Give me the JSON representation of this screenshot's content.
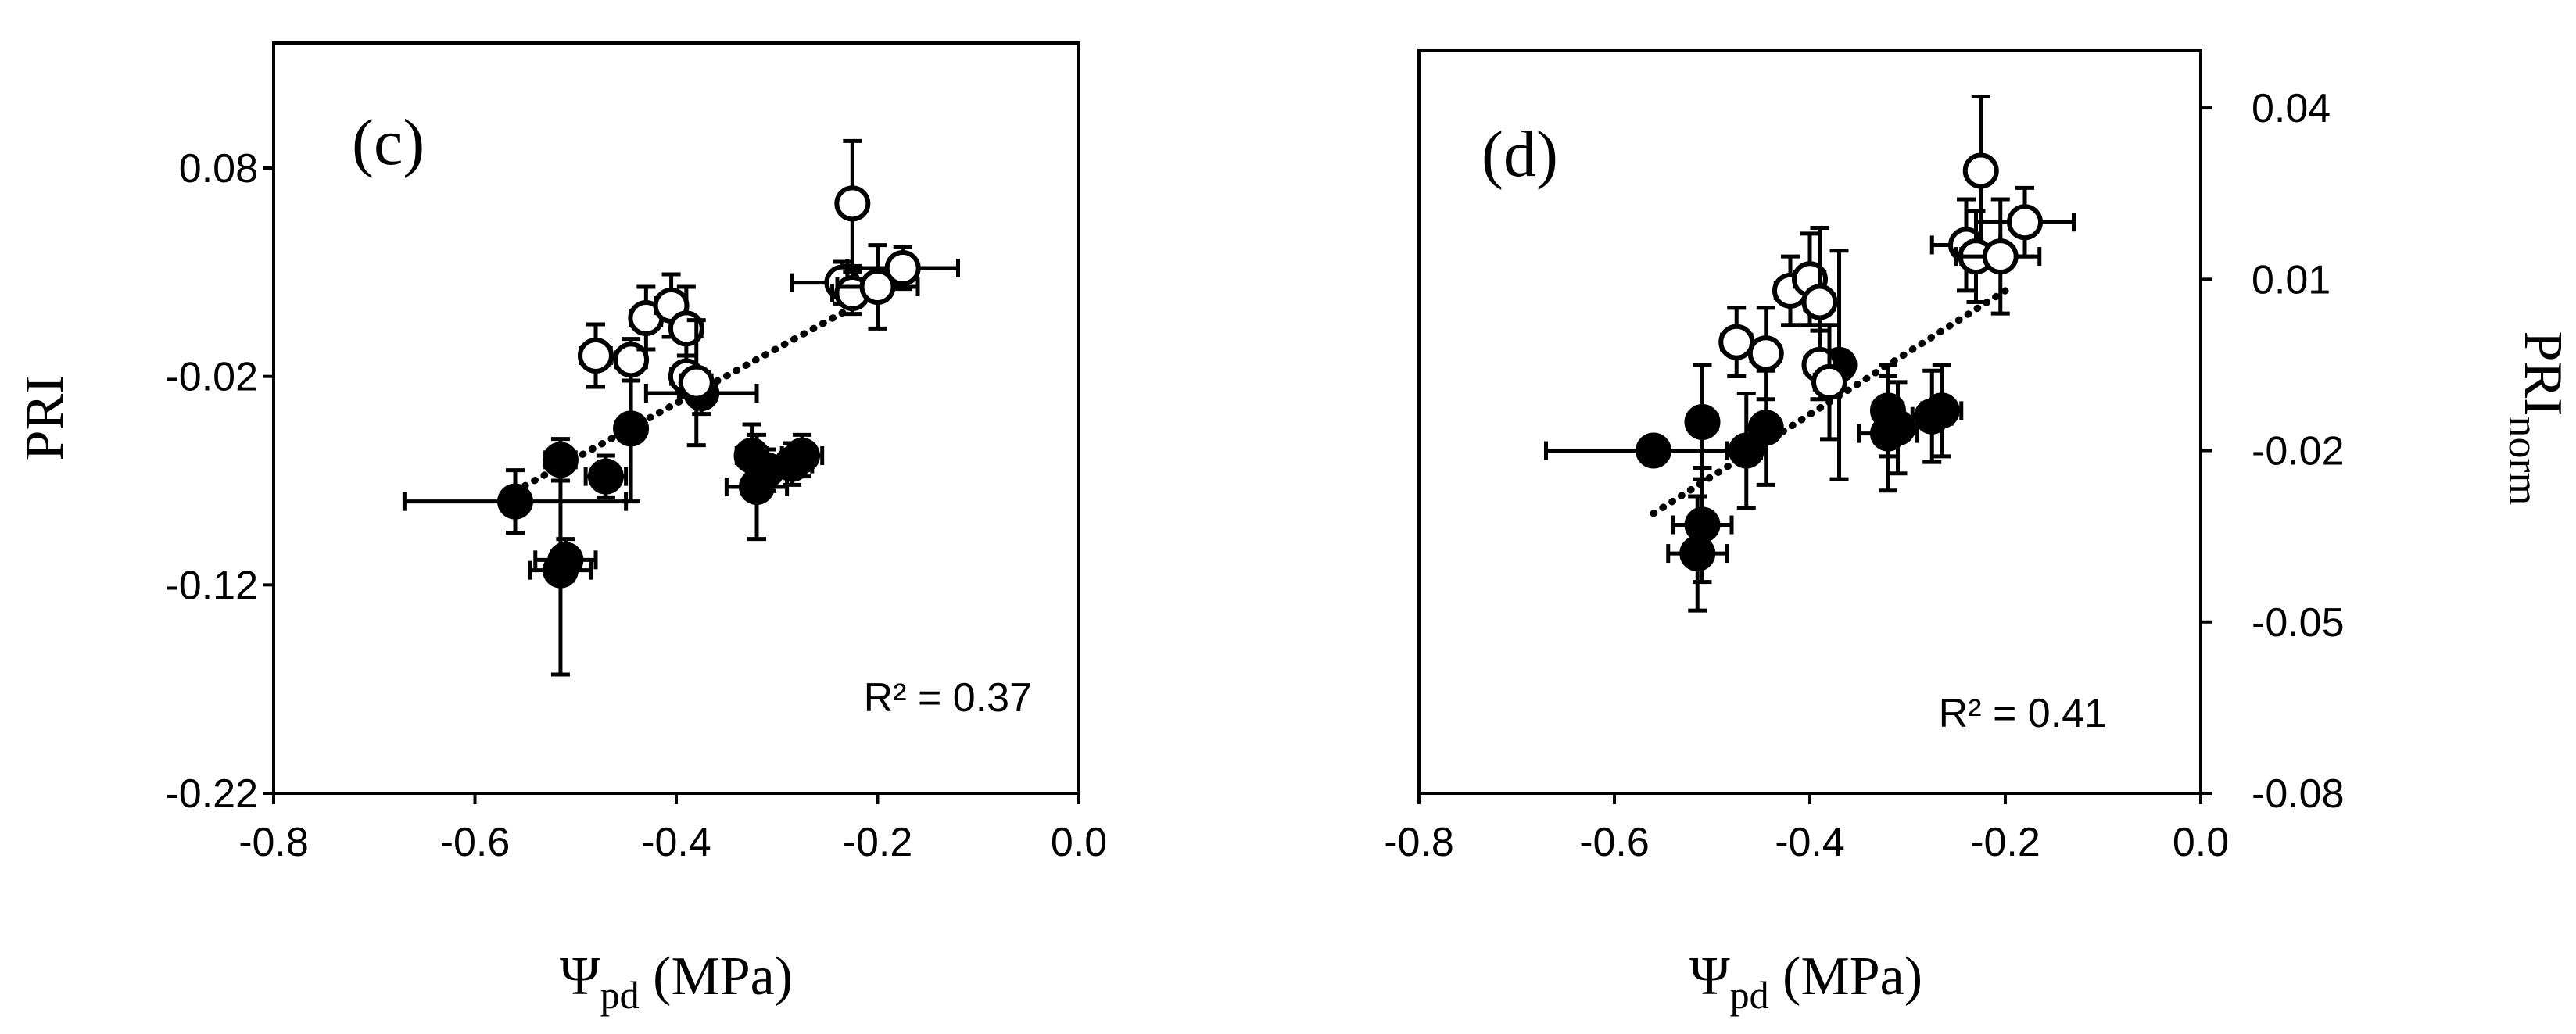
{
  "chart_data": [
    {
      "type": "scatter",
      "panel_label": "(c)",
      "xlabel_symbol": "Ψ",
      "xlabel_sub": "pd",
      "xlabel_unit": " (MPa)",
      "ylabel": "PRI",
      "ylabel_sub": "",
      "y_axis_side": "left",
      "xlim": [
        -0.8,
        0.0
      ],
      "ylim": [
        -0.22,
        0.14
      ],
      "x_ticks": [
        -0.8,
        -0.6,
        -0.4,
        -0.2,
        0.0
      ],
      "x_tick_labels": [
        "-0.8",
        "-0.6",
        "-0.4",
        "-0.2",
        "0.0"
      ],
      "y_ticks": [
        0.08,
        -0.02,
        -0.12,
        -0.22
      ],
      "y_tick_labels": [
        "0.08",
        "-0.02",
        "-0.12",
        "-0.22"
      ],
      "grid": false,
      "annotation": "R² = 0.37",
      "trendline": {
        "style": "dotted",
        "x": [
          -0.56,
          -0.18
        ],
        "y": [
          -0.075,
          0.025
        ]
      },
      "series": [
        {
          "marker": "filled-circle",
          "points": [
            {
              "x": -0.56,
              "y": -0.08,
              "xerr": 0.11,
              "yerr": 0.015
            },
            {
              "x": -0.515,
              "y": -0.06,
              "xerr": 0.015,
              "yerr": 0.01
            },
            {
              "x": -0.515,
              "y": -0.113,
              "xerr": 0.03,
              "yerr": 0.05
            },
            {
              "x": -0.51,
              "y": -0.108,
              "xerr": 0.03,
              "yerr": 0.01
            },
            {
              "x": -0.47,
              "y": -0.068,
              "xerr": 0.02,
              "yerr": 0.01
            },
            {
              "x": -0.445,
              "y": -0.045,
              "xerr": 0.005,
              "yerr": 0.035
            },
            {
              "x": -0.375,
              "y": -0.028,
              "xerr": 0.055,
              "yerr": 0.01
            },
            {
              "x": -0.325,
              "y": -0.058,
              "xerr": 0.015,
              "yerr": 0.015
            },
            {
              "x": -0.32,
              "y": -0.073,
              "xerr": 0.03,
              "yerr": 0.025
            },
            {
              "x": -0.31,
              "y": -0.065,
              "xerr": 0.02,
              "yerr": 0.01
            },
            {
              "x": -0.285,
              "y": -0.062,
              "xerr": 0.02,
              "yerr": 0.01
            },
            {
              "x": -0.275,
              "y": -0.058,
              "xerr": 0.02,
              "yerr": 0.01
            }
          ]
        },
        {
          "marker": "open-circle",
          "points": [
            {
              "x": -0.48,
              "y": -0.01,
              "xerr": 0.015,
              "yerr": 0.015
            },
            {
              "x": -0.445,
              "y": -0.012,
              "xerr": 0.015,
              "yerr": 0.01
            },
            {
              "x": -0.43,
              "y": 0.008,
              "xerr": 0.015,
              "yerr": 0.015
            },
            {
              "x": -0.405,
              "y": 0.014,
              "xerr": 0.015,
              "yerr": 0.015
            },
            {
              "x": -0.39,
              "y": 0.003,
              "xerr": 0.015,
              "yerr": 0.02
            },
            {
              "x": -0.39,
              "y": -0.02,
              "xerr": 0.015,
              "yerr": 0.01
            },
            {
              "x": -0.38,
              "y": -0.023,
              "xerr": 0.015,
              "yerr": 0.03
            },
            {
              "x": -0.225,
              "y": 0.063,
              "xerr": 0.005,
              "yerr": 0.03
            },
            {
              "x": -0.235,
              "y": 0.025,
              "xerr": 0.05,
              "yerr": 0.01
            },
            {
              "x": -0.225,
              "y": 0.02,
              "xerr": 0.02,
              "yerr": 0.01
            },
            {
              "x": -0.2,
              "y": 0.023,
              "xerr": 0.04,
              "yerr": 0.02
            },
            {
              "x": -0.175,
              "y": 0.032,
              "xerr": 0.055,
              "yerr": 0.01
            }
          ]
        }
      ]
    },
    {
      "type": "scatter",
      "panel_label": "(d)",
      "xlabel_symbol": "Ψ",
      "xlabel_sub": "pd",
      "xlabel_unit": " (MPa)",
      "ylabel": "PRI",
      "ylabel_sub": "norm",
      "y_axis_side": "right",
      "xlim": [
        -0.8,
        0.0
      ],
      "ylim": [
        -0.08,
        0.05
      ],
      "x_ticks": [
        -0.8,
        -0.6,
        -0.4,
        -0.2,
        0.0
      ],
      "x_tick_labels": [
        "-0.8",
        "-0.6",
        "-0.4",
        "-0.2",
        "0.0"
      ],
      "y_ticks": [
        0.04,
        0.01,
        -0.02,
        -0.05,
        -0.08
      ],
      "y_tick_labels": [
        "0.04",
        "0.01",
        "-0.02",
        "-0.05",
        "-0.08"
      ],
      "grid": false,
      "annotation": "R² = 0.41",
      "trendline": {
        "style": "dotted",
        "x": [
          -0.56,
          -0.2
        ],
        "y": [
          -0.031,
          0.008
        ]
      },
      "series": [
        {
          "marker": "filled-circle",
          "points": [
            {
              "x": -0.56,
              "y": -0.02,
              "xerr": 0.11,
              "yerr": 0.002
            },
            {
              "x": -0.51,
              "y": -0.015,
              "xerr": 0.015,
              "yerr": 0.01
            },
            {
              "x": -0.51,
              "y": -0.033,
              "xerr": 0.03,
              "yerr": 0.01
            },
            {
              "x": -0.515,
              "y": -0.038,
              "xerr": 0.03,
              "yerr": 0.01
            },
            {
              "x": -0.465,
              "y": -0.02,
              "xerr": 0.02,
              "yerr": 0.01
            },
            {
              "x": -0.445,
              "y": -0.016,
              "xerr": 0.01,
              "yerr": 0.01
            },
            {
              "x": -0.37,
              "y": -0.005,
              "xerr": 0.01,
              "yerr": 0.02
            },
            {
              "x": -0.32,
              "y": -0.017,
              "xerr": 0.03,
              "yerr": 0.01
            },
            {
              "x": -0.32,
              "y": -0.013,
              "xerr": 0.015,
              "yerr": 0.008
            },
            {
              "x": -0.31,
              "y": -0.016,
              "xerr": 0.02,
              "yerr": 0.008
            },
            {
              "x": -0.275,
              "y": -0.014,
              "xerr": 0.02,
              "yerr": 0.008
            },
            {
              "x": -0.265,
              "y": -0.013,
              "xerr": 0.02,
              "yerr": 0.008
            }
          ]
        },
        {
          "marker": "open-circle",
          "points": [
            {
              "x": -0.475,
              "y": -0.001,
              "xerr": 0.015,
              "yerr": 0.006
            },
            {
              "x": -0.445,
              "y": -0.003,
              "xerr": 0.015,
              "yerr": 0.008
            },
            {
              "x": -0.42,
              "y": 0.008,
              "xerr": 0.015,
              "yerr": 0.006
            },
            {
              "x": -0.4,
              "y": 0.01,
              "xerr": 0.015,
              "yerr": 0.008
            },
            {
              "x": -0.39,
              "y": 0.006,
              "xerr": 0.015,
              "yerr": 0.013
            },
            {
              "x": -0.39,
              "y": -0.005,
              "xerr": 0.015,
              "yerr": 0.006
            },
            {
              "x": -0.38,
              "y": -0.008,
              "xerr": 0.015,
              "yerr": 0.01
            },
            {
              "x": -0.225,
              "y": 0.029,
              "xerr": 0.005,
              "yerr": 0.013
            },
            {
              "x": -0.24,
              "y": 0.016,
              "xerr": 0.035,
              "yerr": 0.008
            },
            {
              "x": -0.23,
              "y": 0.014,
              "xerr": 0.02,
              "yerr": 0.008
            },
            {
              "x": -0.205,
              "y": 0.014,
              "xerr": 0.04,
              "yerr": 0.01
            },
            {
              "x": -0.18,
              "y": 0.02,
              "xerr": 0.05,
              "yerr": 0.006
            }
          ]
        }
      ]
    }
  ]
}
